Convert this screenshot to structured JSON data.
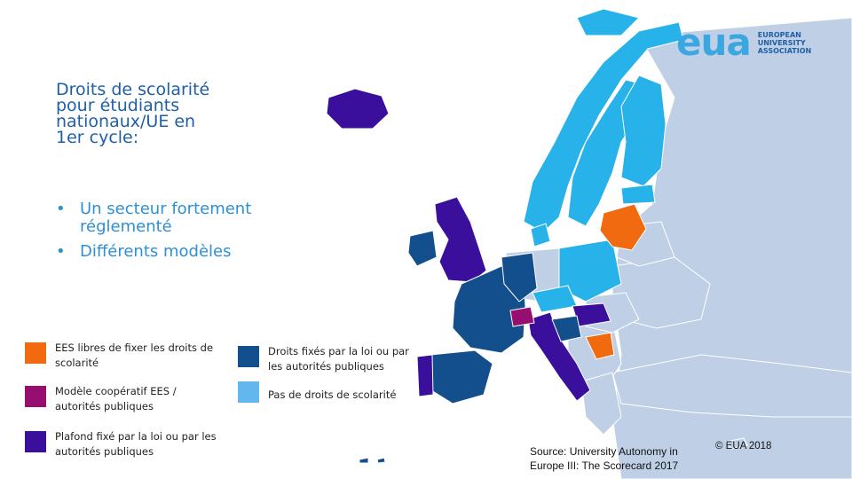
{
  "title_lines": [
    "Droits de scolarité",
    "pour étudiants",
    "nationaux/UE en",
    "1er cycle:"
  ],
  "bullets": [
    "Un secteur fortement réglementé",
    "Différents modèles"
  ],
  "legend": [
    {
      "label": "EES libres de fixer les droits de scolarité",
      "color": "#f26a0f"
    },
    {
      "label": "Modèle coopératif EES / autorités publiques",
      "color": "#960e6f"
    },
    {
      "label": "Plafond fixé par la loi ou par les autorités publiques",
      "color": "#3a0f9c"
    },
    {
      "label": "Droits fixés par la loi ou par les autorités publiques",
      "color": "#124f8c"
    },
    {
      "label": "Pas de droits de scolarité",
      "color": "#62b8ee"
    }
  ],
  "map_colors": {
    "free": "#f26a0f",
    "cooperative": "#960e6f",
    "ceiling": "#3a0f9c",
    "fixed": "#124f8c",
    "no_fees": "#27b2ea",
    "no_data": "#bfd0e6"
  },
  "logo": {
    "mark": "eua",
    "lines": [
      "EUROPEAN",
      "UNIVERSITY",
      "ASSOCIATION"
    ]
  },
  "source_lines": [
    "Source: University Autonomy in",
    "Europe III: The Scorecard 2017"
  ],
  "copyright": "© EUA 2018"
}
